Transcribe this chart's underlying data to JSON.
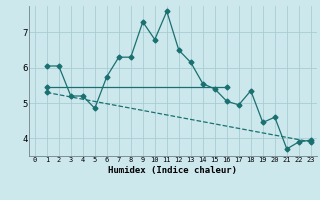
{
  "xlabel": "Humidex (Indice chaleur)",
  "background_color": "#cce8ec",
  "grid_color": "#a8cdd4",
  "line_color": "#1a7070",
  "xlim": [
    -0.5,
    23.5
  ],
  "ylim": [
    3.5,
    7.75
  ],
  "yticks": [
    4,
    5,
    6,
    7
  ],
  "xticks": [
    0,
    1,
    2,
    3,
    4,
    5,
    6,
    7,
    8,
    9,
    10,
    11,
    12,
    13,
    14,
    15,
    16,
    17,
    18,
    19,
    20,
    21,
    22,
    23
  ],
  "series1_x": [
    1,
    2,
    3,
    4,
    5,
    6,
    7,
    8,
    9,
    10,
    11,
    12,
    13,
    14,
    15,
    16,
    17,
    18,
    19,
    20,
    21,
    22,
    23
  ],
  "series1_y": [
    6.05,
    6.05,
    5.2,
    5.2,
    4.85,
    5.75,
    6.3,
    6.3,
    7.3,
    6.8,
    7.6,
    6.5,
    6.15,
    5.55,
    5.4,
    5.05,
    4.95,
    5.35,
    4.45,
    4.6,
    3.7,
    3.9,
    3.95
  ],
  "series2_x": [
    1,
    16
  ],
  "series2_y": [
    5.45,
    5.45
  ],
  "series3_x": [
    1,
    23
  ],
  "series3_y": [
    5.3,
    3.9
  ],
  "marker_size": 2.5,
  "linewidth": 0.9
}
